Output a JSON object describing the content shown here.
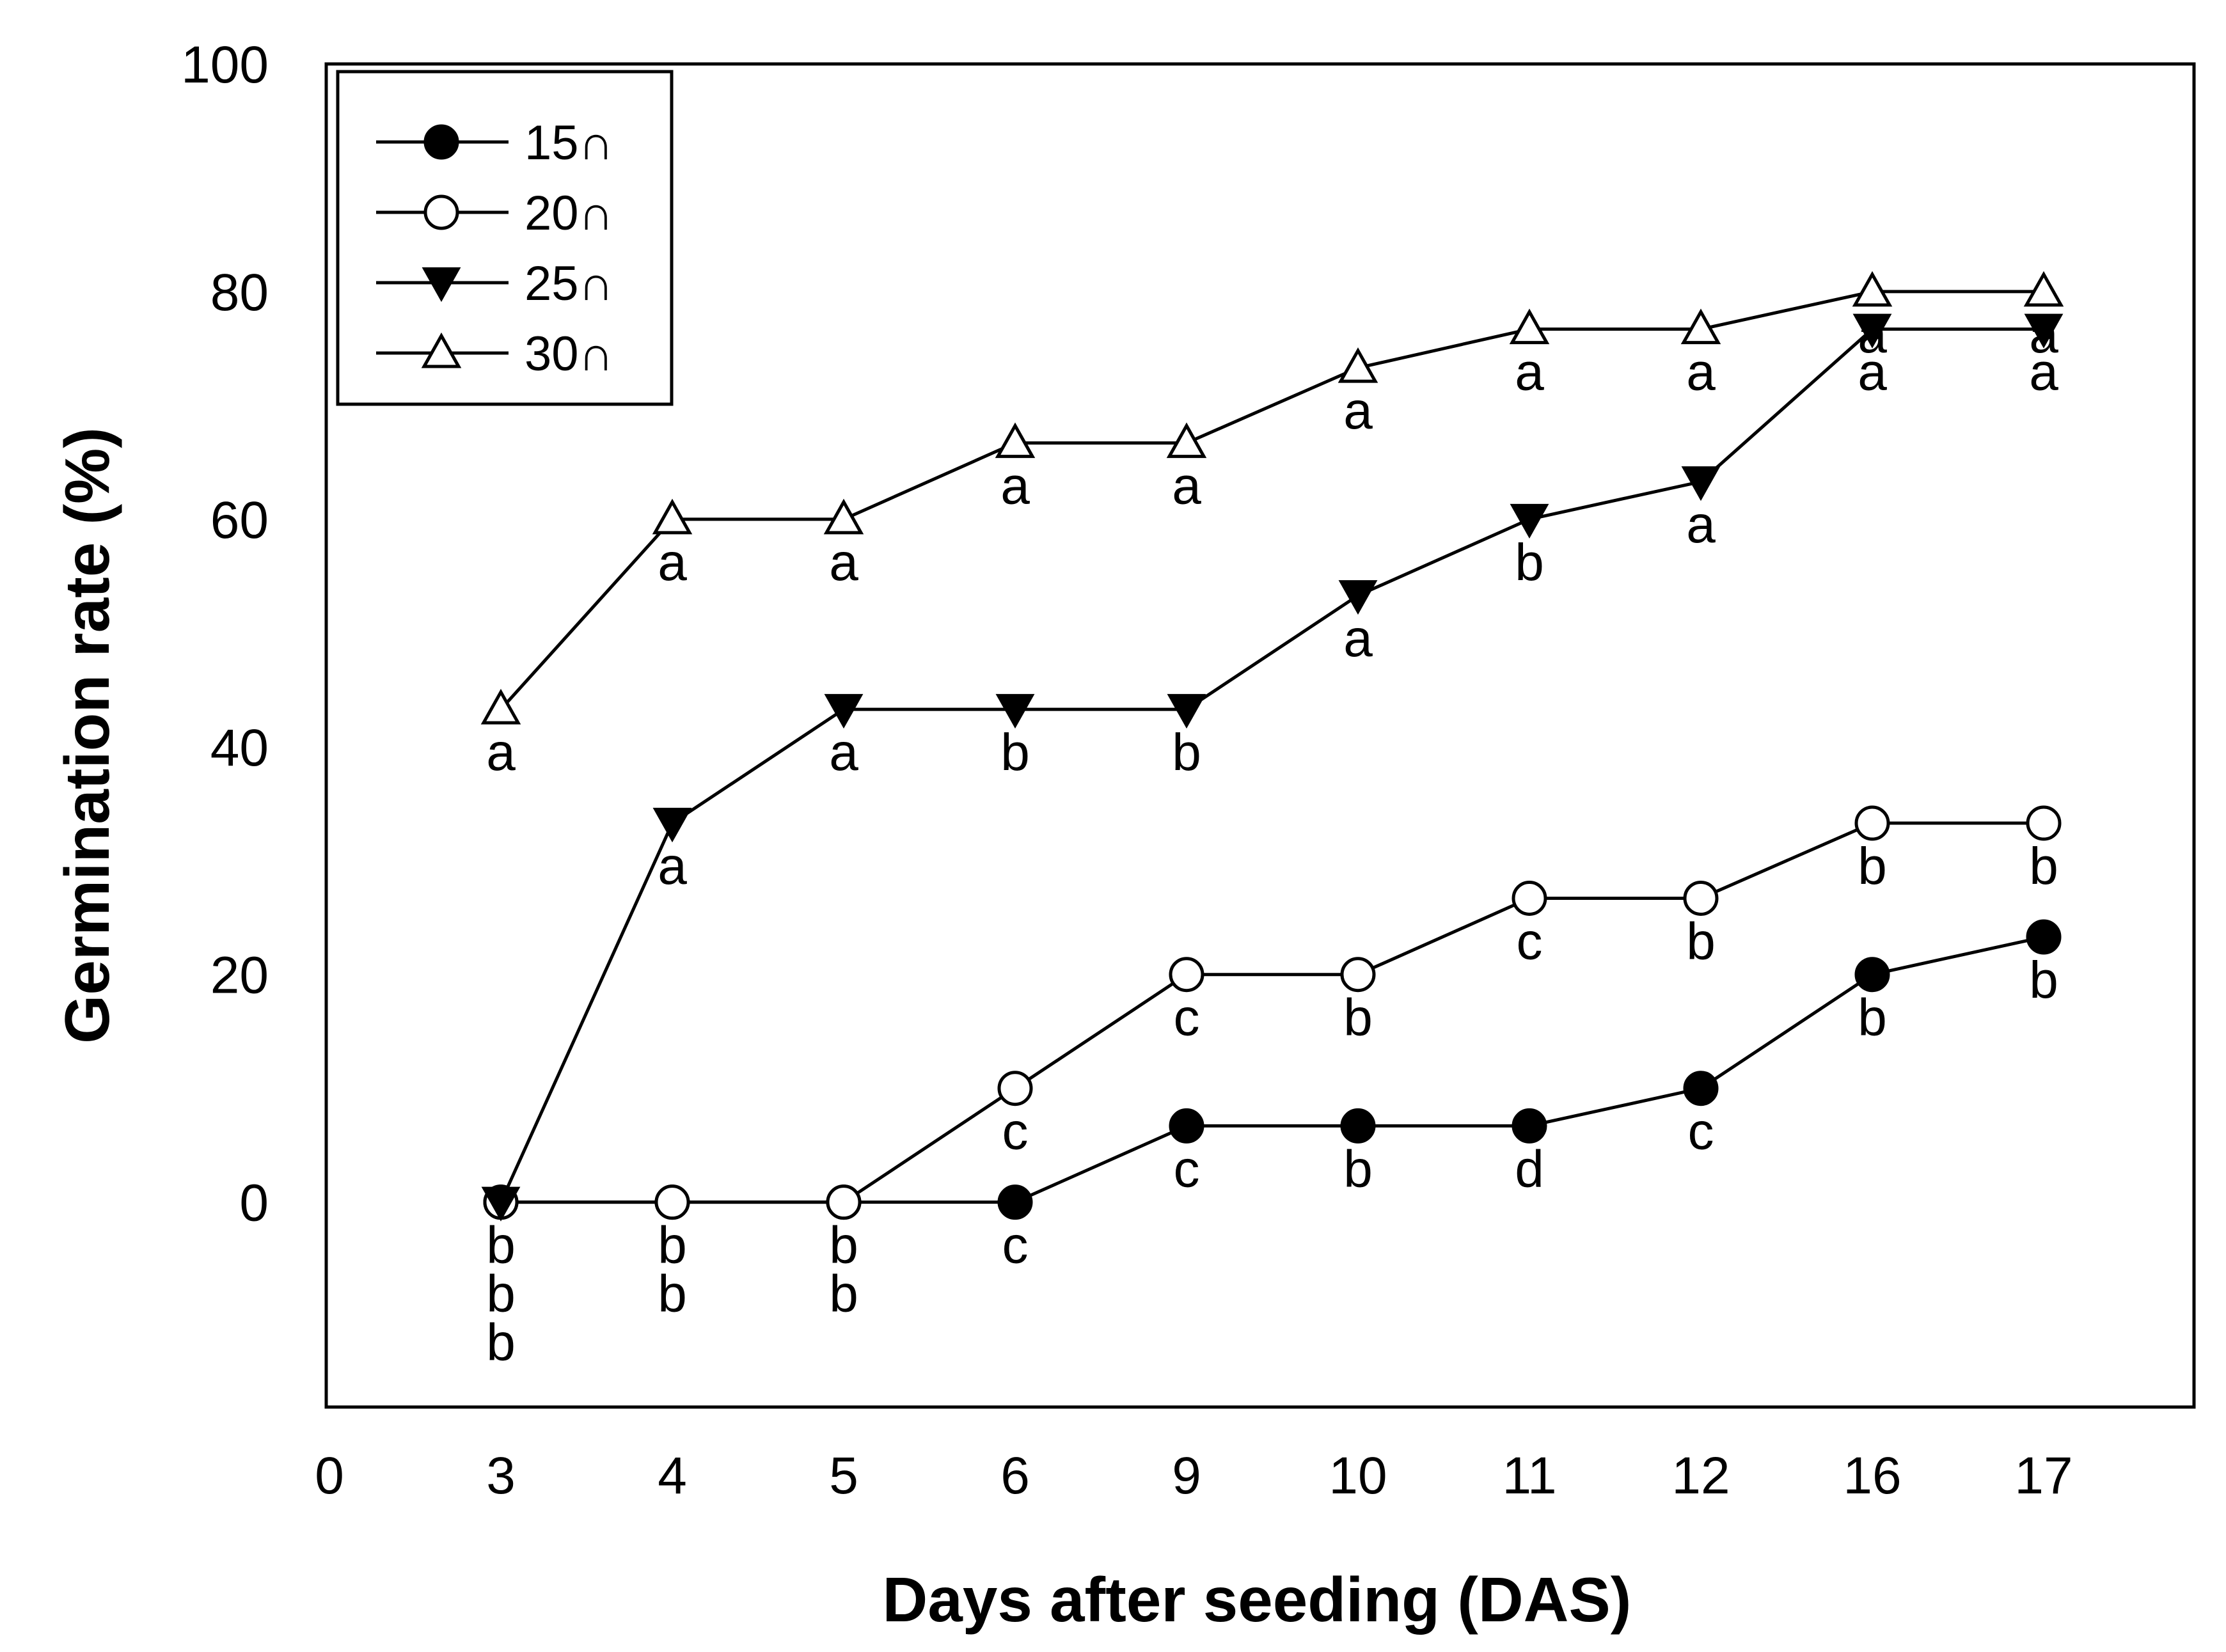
{
  "chart_data": {
    "type": "line",
    "title": "",
    "xlabel": "Days after seeding (DAS)",
    "ylabel": "Germination rate (%)",
    "ylim": [
      -18,
      100
    ],
    "y_ticks": [
      0,
      20,
      40,
      60,
      80,
      100
    ],
    "categories": [
      "0",
      "3",
      "4",
      "5",
      "6",
      "9",
      "10",
      "11",
      "12",
      "16",
      "17"
    ],
    "legend_position": "top-left",
    "series": [
      {
        "name": "15∩",
        "marker": "filled-circle",
        "x": [
          "3",
          "4",
          "5",
          "6",
          "9",
          "10",
          "11",
          "12",
          "16",
          "17"
        ],
        "values": [
          0,
          0,
          0,
          0,
          6.7,
          6.7,
          6.7,
          10,
          20,
          23.3
        ],
        "letters": [
          "b",
          "b",
          "b",
          "c",
          "c",
          "b",
          "d",
          "c",
          "b",
          "b"
        ]
      },
      {
        "name": "20∩",
        "marker": "open-circle",
        "x": [
          "3",
          "4",
          "5",
          "6",
          "9",
          "10",
          "11",
          "12",
          "16",
          "17"
        ],
        "values": [
          0,
          0,
          0,
          10,
          20,
          20,
          26.7,
          26.7,
          33.3,
          33.3
        ],
        "letters": [
          "b",
          "b",
          "b",
          "c",
          "c",
          "b",
          "c",
          "b",
          "b",
          "b"
        ]
      },
      {
        "name": "25∩",
        "marker": "filled-triangle-down",
        "x": [
          "3",
          "4",
          "5",
          "6",
          "9",
          "10",
          "11",
          "12",
          "16",
          "17"
        ],
        "values": [
          0,
          33.3,
          43.3,
          43.3,
          43.3,
          53.3,
          60,
          63.3,
          76.7,
          76.7
        ],
        "letters": [
          "b",
          "a",
          "a",
          "b",
          "b",
          "a",
          "b",
          "a",
          "a",
          "a"
        ]
      },
      {
        "name": "30∩",
        "marker": "open-triangle-up",
        "x": [
          "3",
          "4",
          "5",
          "6",
          "9",
          "10",
          "11",
          "12",
          "16",
          "17"
        ],
        "values": [
          43.3,
          60,
          60,
          66.7,
          66.7,
          73.3,
          76.7,
          76.7,
          80,
          80
        ],
        "letters": [
          "a",
          "a",
          "a",
          "a",
          "a",
          "a",
          "a",
          "a",
          "a",
          "a"
        ]
      }
    ]
  }
}
